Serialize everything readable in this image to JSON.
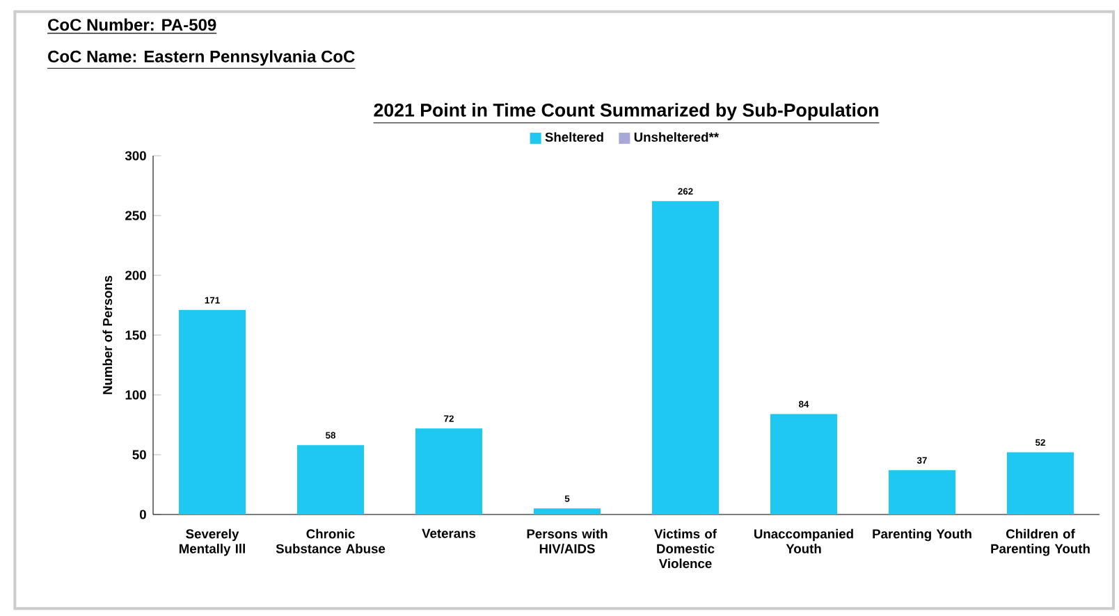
{
  "chart_data": {
    "type": "bar",
    "title": "2021 Point in Time Count Summarized by Sub-Population",
    "annotations": [
      "CoC Number:    PA-509",
      "CoC Name:    Eastern Pennsylvania CoC"
    ],
    "ylabel": "Number of Persons",
    "categories": [
      "Severely Mentally Ill",
      "Chronic Substance Abuse",
      "Veterans",
      "Persons with HIV/AIDS",
      "Victims of Domestic Violence",
      "Unaccompanied Youth",
      "Parenting Youth",
      "Children of Parenting Youth"
    ],
    "series": [
      {
        "name": "Sheltered",
        "color": "#1ec8f0",
        "values": [
          171,
          58,
          72,
          5,
          262,
          84,
          37,
          52
        ]
      },
      {
        "name": "Unsheltered**",
        "color": "#a8a8d8",
        "values": [
          null,
          null,
          null,
          null,
          null,
          null,
          null,
          null
        ]
      }
    ],
    "ylim": [
      0,
      300
    ],
    "yticks": [
      0,
      50,
      100,
      150,
      200,
      250,
      300
    ],
    "data_labels": true,
    "legend": "top",
    "grid": false
  }
}
